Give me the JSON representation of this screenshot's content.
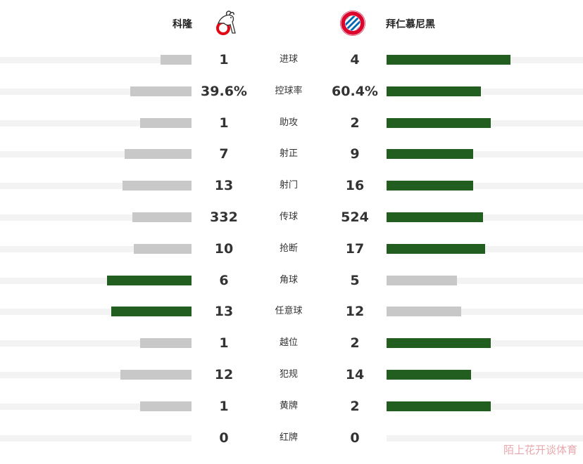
{
  "header": {
    "home_team": "科隆",
    "away_team": "拜仁慕尼黑",
    "home_logo_icon": "fc-koln-goat-crest-icon",
    "away_logo_icon": "fc-bayern-munchen-crest-icon"
  },
  "colors": {
    "leading": "#225e20",
    "trailing": "#c8c8c8",
    "track": "#f3f3f3"
  },
  "stats": [
    {
      "label": "进球",
      "home": "1",
      "away": "4",
      "home_fraction": 0.16,
      "away_fraction": 0.63,
      "leader": "away"
    },
    {
      "label": "控球率",
      "home": "39.6%",
      "away": "60.4%",
      "home_fraction": 0.32,
      "away_fraction": 0.48,
      "leader": "away"
    },
    {
      "label": "助攻",
      "home": "1",
      "away": "2",
      "home_fraction": 0.27,
      "away_fraction": 0.53,
      "leader": "away"
    },
    {
      "label": "射正",
      "home": "7",
      "away": "9",
      "home_fraction": 0.35,
      "away_fraction": 0.44,
      "leader": "away"
    },
    {
      "label": "射门",
      "home": "13",
      "away": "16",
      "home_fraction": 0.36,
      "away_fraction": 0.44,
      "leader": "away"
    },
    {
      "label": "传球",
      "home": "332",
      "away": "524",
      "home_fraction": 0.31,
      "away_fraction": 0.49,
      "leader": "away"
    },
    {
      "label": "抢断",
      "home": "10",
      "away": "17",
      "home_fraction": 0.3,
      "away_fraction": 0.5,
      "leader": "away"
    },
    {
      "label": "角球",
      "home": "6",
      "away": "5",
      "home_fraction": 0.44,
      "away_fraction": 0.36,
      "leader": "home"
    },
    {
      "label": "任意球",
      "home": "13",
      "away": "12",
      "home_fraction": 0.42,
      "away_fraction": 0.38,
      "leader": "home"
    },
    {
      "label": "越位",
      "home": "1",
      "away": "2",
      "home_fraction": 0.27,
      "away_fraction": 0.53,
      "leader": "away"
    },
    {
      "label": "犯规",
      "home": "12",
      "away": "14",
      "home_fraction": 0.37,
      "away_fraction": 0.43,
      "leader": "away"
    },
    {
      "label": "黄牌",
      "home": "1",
      "away": "2",
      "home_fraction": 0.27,
      "away_fraction": 0.53,
      "leader": "away"
    },
    {
      "label": "红牌",
      "home": "0",
      "away": "0",
      "home_fraction": 0,
      "away_fraction": 0,
      "leader": "none"
    }
  ],
  "watermark": "陌上花开谈体育"
}
